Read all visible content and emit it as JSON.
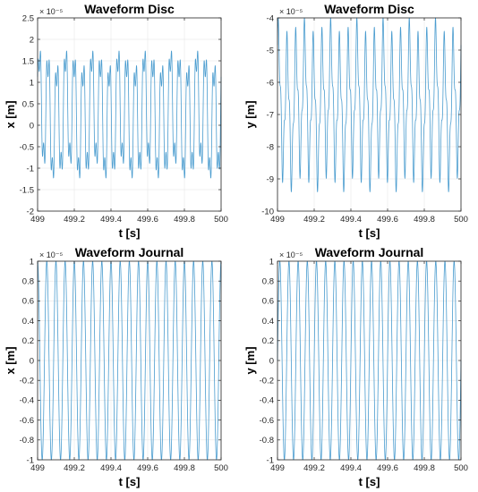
{
  "colors": {
    "series": "#4a9ccf"
  },
  "chart_data": [
    {
      "type": "line",
      "title": "Waveform Disc",
      "xlabel": "t [s]",
      "ylabel": "x [m]",
      "exponent_label": "× 10⁻⁵",
      "xlim": [
        499,
        500
      ],
      "ylim": [
        -2,
        2.5
      ],
      "xticks": [
        499,
        499.2,
        499.4,
        499.6,
        499.8,
        500
      ],
      "xtick_labels": [
        "499",
        "499.2",
        "499.4",
        "499.6",
        "499.8",
        "500"
      ],
      "yticks": [
        -2,
        -1.5,
        -1,
        -0.5,
        0,
        0.5,
        1,
        1.5,
        2,
        2.5
      ],
      "ytick_labels": [
        "-2",
        "-1.5",
        "-1",
        "-0.5",
        "0",
        "0.5",
        "1",
        "1.5",
        "2",
        "2.5"
      ],
      "grid": true,
      "signal": {
        "kind": "multi_tone",
        "offset": 0.25,
        "components": [
          {
            "amp": 1.3,
            "freq": 21,
            "phase": 0.3
          },
          {
            "amp": 0.45,
            "freq": 63,
            "phase": 1.1
          },
          {
            "amp": 0.2,
            "freq": 7,
            "phase": 0.5
          }
        ],
        "samples": 1400
      }
    },
    {
      "type": "line",
      "title": "Waveform Disc",
      "xlabel": "t [s]",
      "ylabel": "y [m]",
      "exponent_label": "× 10⁻⁵",
      "xlim": [
        499,
        500
      ],
      "ylim": [
        -10,
        -4
      ],
      "xticks": [
        499,
        499.2,
        499.4,
        499.6,
        499.8,
        500
      ],
      "xtick_labels": [
        "499",
        "499.2",
        "499.4",
        "499.6",
        "499.8",
        "500"
      ],
      "yticks": [
        -10,
        -9,
        -8,
        -7,
        -6,
        -5,
        -4
      ],
      "ytick_labels": [
        "-10",
        "-9",
        "-8",
        "-7",
        "-6",
        "-5",
        "-4"
      ],
      "grid": true,
      "signal": {
        "kind": "multi_tone",
        "offset": -6.7,
        "components": [
          {
            "amp": 1.9,
            "freq": 21,
            "phase": 0.9
          },
          {
            "amp": 0.6,
            "freq": 63,
            "phase": 0.2
          },
          {
            "amp": 0.25,
            "freq": 7,
            "phase": 1.7
          }
        ],
        "samples": 1400
      }
    },
    {
      "type": "line",
      "title": "Waveform Journal",
      "xlabel": "t [s]",
      "ylabel": "x [m]",
      "exponent_label": "× 10⁻⁵",
      "xlim": [
        499,
        500
      ],
      "ylim": [
        -1,
        1
      ],
      "xticks": [
        499,
        499.2,
        499.4,
        499.6,
        499.8,
        500
      ],
      "xtick_labels": [
        "499",
        "499.2",
        "499.4",
        "499.6",
        "499.8",
        "500"
      ],
      "yticks": [
        -1,
        -0.8,
        -0.6,
        -0.4,
        -0.2,
        0,
        0.2,
        0.4,
        0.6,
        0.8,
        1
      ],
      "ytick_labels": [
        "-1",
        "-0.8",
        "-0.6",
        "-0.4",
        "-0.2",
        "0",
        "0.2",
        "0.4",
        "0.6",
        "0.8",
        "1"
      ],
      "grid": true,
      "signal": {
        "kind": "multi_tone",
        "offset": 0,
        "components": [
          {
            "amp": 1.0,
            "freq": 20,
            "phase": 1.5708
          }
        ],
        "samples": 1400
      }
    },
    {
      "type": "line",
      "title": "Waveform Journal",
      "xlabel": "t [s]",
      "ylabel": "y [m]",
      "exponent_label": "× 10⁻⁵",
      "xlim": [
        499,
        500
      ],
      "ylim": [
        -1,
        1
      ],
      "xticks": [
        499,
        499.2,
        499.4,
        499.6,
        499.8,
        500
      ],
      "xtick_labels": [
        "499",
        "499.2",
        "499.4",
        "499.6",
        "499.8",
        "500"
      ],
      "yticks": [
        -1,
        -0.8,
        -0.6,
        -0.4,
        -0.2,
        0,
        0.2,
        0.4,
        0.6,
        0.8,
        1
      ],
      "ytick_labels": [
        "-1",
        "-0.8",
        "-0.6",
        "-0.4",
        "-0.2",
        "0",
        "0.2",
        "0.4",
        "0.6",
        "0.8",
        "1"
      ],
      "grid": true,
      "signal": {
        "kind": "multi_tone",
        "offset": 0,
        "components": [
          {
            "amp": 1.0,
            "freq": 20,
            "phase": 0
          }
        ],
        "samples": 1400
      }
    }
  ]
}
